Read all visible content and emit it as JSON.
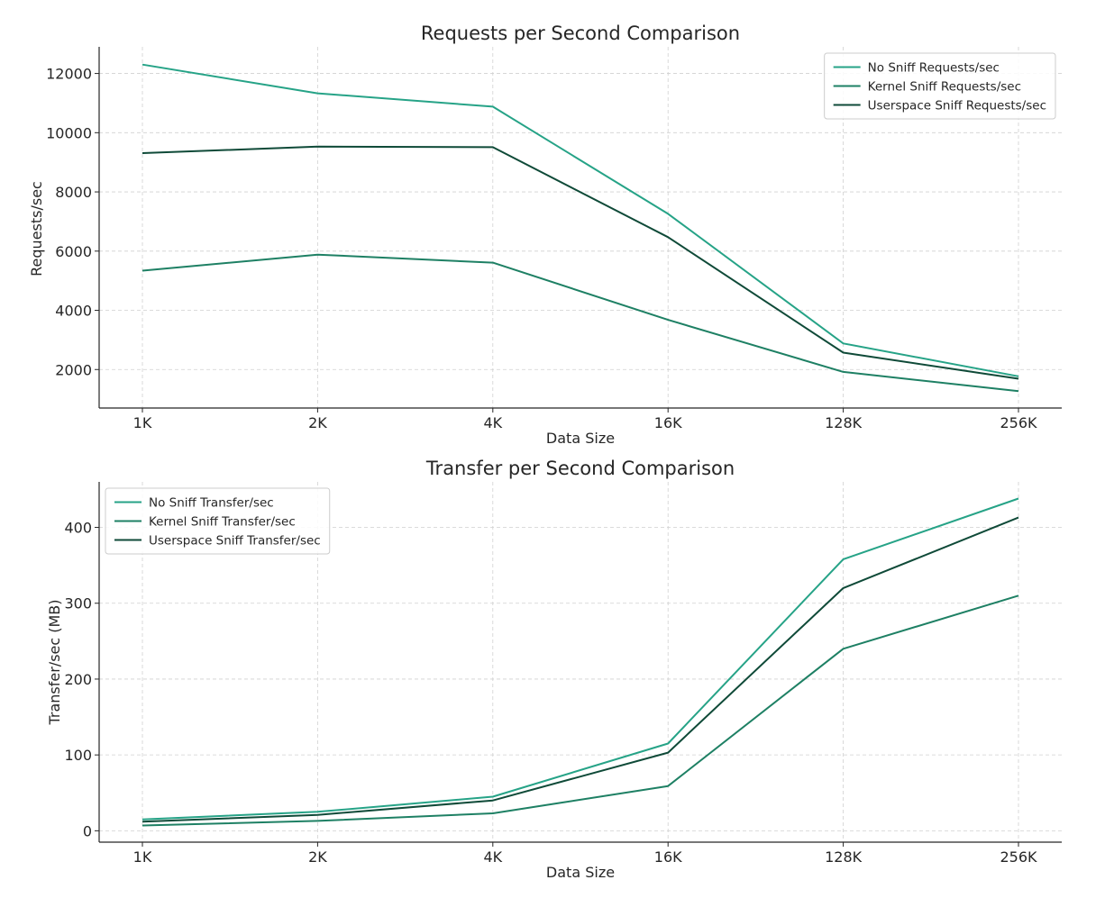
{
  "chart_data": [
    {
      "type": "line",
      "title": "Requests per Second Comparison",
      "xlabel": "Data Size",
      "ylabel": "Requests/sec",
      "categories": [
        "1K",
        "2K",
        "4K",
        "16K",
        "128K",
        "256K"
      ],
      "ylim": [
        700,
        12900
      ],
      "yticks": [
        2000,
        4000,
        6000,
        8000,
        10000,
        12000
      ],
      "ytick_labels": [
        "2000",
        "4000",
        "6000",
        "8000",
        "10000",
        "12000"
      ],
      "grid": true,
      "legend_position": "top-right",
      "series": [
        {
          "name": "No Sniff Requests/sec",
          "color": "#26a387",
          "values": [
            12300,
            11330,
            10880,
            7260,
            2880,
            1770
          ]
        },
        {
          "name": "Kernel Sniff Requests/sec",
          "color": "#1e8064",
          "values": [
            5340,
            5880,
            5610,
            3680,
            1920,
            1270
          ]
        },
        {
          "name": "Userspace Sniff Requests/sec",
          "color": "#0f4a38",
          "values": [
            9310,
            9530,
            9510,
            6470,
            2570,
            1690
          ]
        }
      ]
    },
    {
      "type": "line",
      "title": "Transfer per Second Comparison",
      "xlabel": "Data Size",
      "ylabel": "Transfer/sec (MB)",
      "categories": [
        "1K",
        "2K",
        "4K",
        "16K",
        "128K",
        "256K"
      ],
      "ylim": [
        -15,
        460
      ],
      "yticks": [
        0,
        100,
        200,
        300,
        400
      ],
      "ytick_labels": [
        "0",
        "100",
        "200",
        "300",
        "400"
      ],
      "grid": true,
      "legend_position": "top-left",
      "series": [
        {
          "name": "No Sniff Transfer/sec",
          "color": "#26a387",
          "values": [
            15,
            25,
            45,
            115,
            358,
            438
          ]
        },
        {
          "name": "Kernel Sniff Transfer/sec",
          "color": "#1e8064",
          "values": [
            7,
            13,
            23,
            59,
            240,
            310
          ]
        },
        {
          "name": "Userspace Sniff Transfer/sec",
          "color": "#0f4a38",
          "values": [
            12,
            21,
            40,
            103,
            320,
            413
          ]
        }
      ]
    }
  ]
}
